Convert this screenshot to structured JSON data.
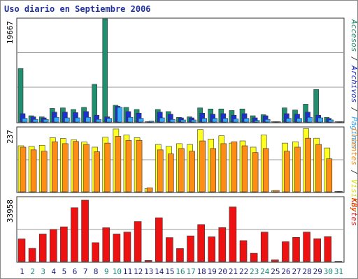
{
  "title": "Uso diario en Septiembre 2006",
  "colors": {
    "accesos": "#1f8f6f",
    "archivos": "#1c2fd0",
    "paginas": "#33aaff",
    "visitas": "#ffff22",
    "clientes": "#ff8c14",
    "kbytes": "#ee1111",
    "weekday_label": "#1a1a80",
    "weekend_label": "#1a8a7a",
    "title": "#1f2f9f"
  },
  "legend_right": {
    "panel1": [
      {
        "text": "Accesos",
        "color": "#1f8f6f"
      },
      {
        "text": " / ",
        "color": "#333333"
      },
      {
        "text": "Archivos",
        "color": "#1c2fd0"
      },
      {
        "text": " / ",
        "color": "#333333"
      },
      {
        "text": "Páginas",
        "color": "#33aaff"
      }
    ],
    "panel2": [
      {
        "text": "Clientes",
        "color": "#ff8c14"
      },
      {
        "text": " / ",
        "color": "#333333"
      },
      {
        "text": "Visitas",
        "color": "#dddd00"
      }
    ],
    "panel3": [
      {
        "text": "KBytes",
        "color": "#ee1111"
      }
    ]
  },
  "chart_data": [
    {
      "type": "bar",
      "panel": "hits",
      "ymax_label": "19667",
      "ylim": [
        0,
        19667
      ],
      "categories": [
        "1",
        "2",
        "3",
        "4",
        "5",
        "6",
        "7",
        "8",
        "9",
        "10",
        "11",
        "12",
        "13",
        "14",
        "15",
        "16",
        "17",
        "18",
        "19",
        "20",
        "21",
        "22",
        "23",
        "24",
        "25",
        "26",
        "27",
        "28",
        "29",
        "30",
        "31"
      ],
      "series": [
        {
          "name": "Accesos",
          "values": [
            10200,
            1200,
            1000,
            2600,
            2700,
            2400,
            2800,
            7200,
            19667,
            3200,
            2800,
            2400,
            0,
            2400,
            2000,
            900,
            1000,
            2700,
            2500,
            2500,
            2200,
            2500,
            1200,
            1400,
            0,
            2700,
            2300,
            3400,
            6200,
            900,
            0
          ]
        },
        {
          "name": "Archivos",
          "values": [
            1600,
            1000,
            800,
            1900,
            1900,
            1800,
            2000,
            1300,
            1000,
            3000,
            2000,
            1700,
            0,
            1900,
            1500,
            800,
            800,
            1700,
            1500,
            1600,
            1300,
            1600,
            800,
            1200,
            0,
            1600,
            1500,
            1900,
            1300,
            700,
            0
          ]
        },
        {
          "name": "Páginas",
          "values": [
            700,
            500,
            500,
            900,
            800,
            800,
            900,
            500,
            700,
            2800,
            900,
            700,
            200,
            800,
            500,
            400,
            400,
            700,
            700,
            700,
            600,
            700,
            300,
            500,
            0,
            700,
            700,
            900,
            800,
            400,
            0
          ]
        }
      ]
    },
    {
      "type": "bar",
      "panel": "visits",
      "ymax_label": "237",
      "ylim": [
        0,
        237
      ],
      "categories": [
        "1",
        "2",
        "3",
        "4",
        "5",
        "6",
        "7",
        "8",
        "9",
        "10",
        "11",
        "12",
        "13",
        "14",
        "15",
        "16",
        "17",
        "18",
        "19",
        "20",
        "21",
        "22",
        "23",
        "24",
        "25",
        "26",
        "27",
        "28",
        "29",
        "30",
        "31"
      ],
      "series": [
        {
          "name": "Visitas",
          "values": [
            170,
            168,
            172,
            200,
            197,
            192,
            184,
            165,
            202,
            232,
            210,
            200,
            12,
            175,
            168,
            178,
            175,
            230,
            195,
            207,
            180,
            188,
            165,
            210,
            4,
            180,
            185,
            233,
            198,
            162,
            0
          ]
        },
        {
          "name": "Clientes",
          "values": [
            165,
            155,
            150,
            185,
            178,
            186,
            175,
            148,
            180,
            205,
            190,
            190,
            15,
            155,
            140,
            160,
            150,
            188,
            160,
            178,
            185,
            170,
            145,
            160,
            5,
            150,
            165,
            198,
            175,
            122,
            0
          ]
        }
      ]
    },
    {
      "type": "bar",
      "panel": "kbytes",
      "ymax_label": "33958",
      "ylim": [
        0,
        33958
      ],
      "categories": [
        "1",
        "2",
        "3",
        "4",
        "5",
        "6",
        "7",
        "8",
        "9",
        "10",
        "11",
        "12",
        "13",
        "14",
        "15",
        "16",
        "17",
        "18",
        "19",
        "20",
        "21",
        "22",
        "23",
        "24",
        "25",
        "26",
        "27",
        "28",
        "29",
        "30",
        "31"
      ],
      "series": [
        {
          "name": "KBytes",
          "values": [
            12000,
            7000,
            14600,
            17000,
            18400,
            28500,
            32500,
            10000,
            17900,
            14600,
            15600,
            21200,
            600,
            23200,
            12700,
            6900,
            13600,
            19600,
            13100,
            18000,
            28900,
            11100,
            4400,
            15600,
            900,
            10500,
            12800,
            15600,
            12100,
            13200,
            0
          ]
        }
      ]
    }
  ],
  "weekend_days": [
    2,
    3,
    9,
    10,
    16,
    17,
    23,
    24,
    30,
    31
  ]
}
